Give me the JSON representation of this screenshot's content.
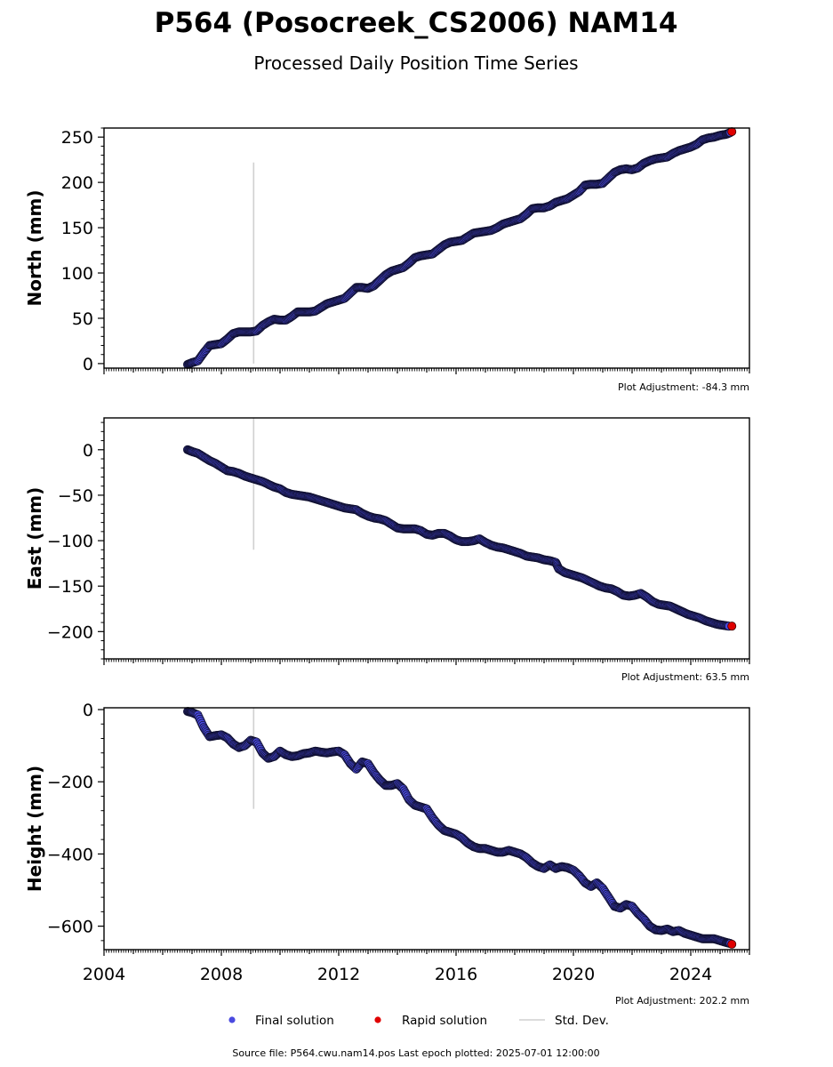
{
  "colors": {
    "final_fill": "#4a4ae0",
    "final_edge": "#101030",
    "rapid_fill": "#e00000",
    "stddev": "#d0d0d0",
    "axis": "#000000"
  },
  "footer": {
    "source": "Source file: P564.cwu.nam14.pos  Last epoch plotted: 2025-07-01 12:00:00"
  },
  "chart_data": {
    "type": "scatter",
    "title": "P564 (Posocreek_CS2006) NAM14",
    "subtitle": "Processed Daily Position Time Series",
    "xlim": [
      2004,
      2026
    ],
    "xticks": [
      2004,
      2008,
      2012,
      2016,
      2020,
      2024
    ],
    "legend": {
      "placement": "bottom-center",
      "entries": [
        "Final solution",
        "Rapid solution",
        "Std. Dev."
      ]
    },
    "panels": [
      {
        "ylabel": "North (mm)",
        "ylim": [
          -5,
          260
        ],
        "yticks": [
          0,
          50,
          100,
          150,
          200,
          250
        ],
        "adjustment": "Plot Adjustment: -84.3 mm",
        "stddev": {
          "x": 2009.1,
          "y": [
            0,
            222
          ]
        },
        "rapid": [
          [
            2025.4,
            256
          ]
        ],
        "final": [
          [
            2006.85,
            -1
          ],
          [
            2007.0,
            1
          ],
          [
            2007.2,
            3
          ],
          [
            2007.4,
            12
          ],
          [
            2007.6,
            20
          ],
          [
            2007.8,
            21
          ],
          [
            2008.0,
            22
          ],
          [
            2008.2,
            27
          ],
          [
            2008.4,
            33
          ],
          [
            2008.6,
            35
          ],
          [
            2008.8,
            35
          ],
          [
            2009.0,
            35
          ],
          [
            2009.2,
            36
          ],
          [
            2009.4,
            42
          ],
          [
            2009.6,
            46
          ],
          [
            2009.8,
            49
          ],
          [
            2010.0,
            48
          ],
          [
            2010.2,
            48
          ],
          [
            2010.4,
            52
          ],
          [
            2010.6,
            57
          ],
          [
            2010.8,
            57
          ],
          [
            2011.0,
            57
          ],
          [
            2011.2,
            58
          ],
          [
            2011.4,
            62
          ],
          [
            2011.6,
            66
          ],
          [
            2011.8,
            68
          ],
          [
            2012.0,
            70
          ],
          [
            2012.2,
            72
          ],
          [
            2012.4,
            78
          ],
          [
            2012.6,
            84
          ],
          [
            2012.8,
            84
          ],
          [
            2013.0,
            83
          ],
          [
            2013.2,
            86
          ],
          [
            2013.4,
            92
          ],
          [
            2013.6,
            98
          ],
          [
            2013.8,
            102
          ],
          [
            2014.0,
            104
          ],
          [
            2014.2,
            106
          ],
          [
            2014.4,
            111
          ],
          [
            2014.6,
            117
          ],
          [
            2014.8,
            119
          ],
          [
            2015.0,
            120
          ],
          [
            2015.2,
            121
          ],
          [
            2015.4,
            126
          ],
          [
            2015.6,
            131
          ],
          [
            2015.8,
            134
          ],
          [
            2016.0,
            135
          ],
          [
            2016.2,
            136
          ],
          [
            2016.4,
            140
          ],
          [
            2016.6,
            144
          ],
          [
            2016.8,
            145
          ],
          [
            2017.0,
            146
          ],
          [
            2017.2,
            147
          ],
          [
            2017.4,
            150
          ],
          [
            2017.6,
            154
          ],
          [
            2017.8,
            156
          ],
          [
            2018.0,
            158
          ],
          [
            2018.2,
            160
          ],
          [
            2018.4,
            165
          ],
          [
            2018.6,
            171
          ],
          [
            2018.8,
            172
          ],
          [
            2019.0,
            172
          ],
          [
            2019.2,
            174
          ],
          [
            2019.4,
            178
          ],
          [
            2019.6,
            180
          ],
          [
            2019.8,
            182
          ],
          [
            2020.0,
            186
          ],
          [
            2020.2,
            190
          ],
          [
            2020.4,
            197
          ],
          [
            2020.6,
            198
          ],
          [
            2020.8,
            198
          ],
          [
            2021.0,
            199
          ],
          [
            2021.2,
            205
          ],
          [
            2021.4,
            211
          ],
          [
            2021.6,
            214
          ],
          [
            2021.8,
            215
          ],
          [
            2022.0,
            214
          ],
          [
            2022.2,
            216
          ],
          [
            2022.4,
            221
          ],
          [
            2022.6,
            224
          ],
          [
            2022.8,
            226
          ],
          [
            2023.0,
            227
          ],
          [
            2023.2,
            228
          ],
          [
            2023.4,
            232
          ],
          [
            2023.6,
            235
          ],
          [
            2023.8,
            237
          ],
          [
            2024.0,
            239
          ],
          [
            2024.2,
            242
          ],
          [
            2024.4,
            247
          ],
          [
            2024.6,
            249
          ],
          [
            2024.8,
            250
          ],
          [
            2025.0,
            252
          ],
          [
            2025.2,
            253
          ],
          [
            2025.35,
            255
          ]
        ]
      },
      {
        "ylabel": "East (mm)",
        "ylim": [
          -230,
          35
        ],
        "yticks": [
          0,
          -50,
          -100,
          -150,
          -200
        ],
        "adjustment": "Plot Adjustment: 63.5 mm",
        "stddev": {
          "x": 2009.1,
          "y": [
            -110,
            35
          ]
        },
        "rapid": [
          [
            2025.4,
            -194
          ]
        ],
        "final": [
          [
            2006.85,
            0
          ],
          [
            2007.0,
            -2
          ],
          [
            2007.2,
            -4
          ],
          [
            2007.4,
            -8
          ],
          [
            2007.6,
            -12
          ],
          [
            2007.8,
            -15
          ],
          [
            2008.0,
            -19
          ],
          [
            2008.2,
            -23
          ],
          [
            2008.4,
            -24
          ],
          [
            2008.6,
            -26
          ],
          [
            2008.8,
            -29
          ],
          [
            2009.0,
            -31
          ],
          [
            2009.2,
            -33
          ],
          [
            2009.4,
            -35
          ],
          [
            2009.6,
            -38
          ],
          [
            2009.8,
            -41
          ],
          [
            2010.0,
            -43
          ],
          [
            2010.2,
            -47
          ],
          [
            2010.4,
            -49
          ],
          [
            2010.6,
            -50
          ],
          [
            2010.8,
            -51
          ],
          [
            2011.0,
            -52
          ],
          [
            2011.2,
            -54
          ],
          [
            2011.4,
            -56
          ],
          [
            2011.6,
            -58
          ],
          [
            2011.8,
            -60
          ],
          [
            2012.0,
            -62
          ],
          [
            2012.2,
            -64
          ],
          [
            2012.4,
            -65
          ],
          [
            2012.6,
            -66
          ],
          [
            2012.8,
            -70
          ],
          [
            2013.0,
            -73
          ],
          [
            2013.2,
            -75
          ],
          [
            2013.4,
            -76
          ],
          [
            2013.6,
            -78
          ],
          [
            2013.8,
            -82
          ],
          [
            2014.0,
            -86
          ],
          [
            2014.2,
            -87
          ],
          [
            2014.4,
            -87
          ],
          [
            2014.6,
            -87
          ],
          [
            2014.8,
            -89
          ],
          [
            2015.0,
            -93
          ],
          [
            2015.2,
            -94
          ],
          [
            2015.4,
            -92
          ],
          [
            2015.6,
            -92
          ],
          [
            2015.8,
            -95
          ],
          [
            2016.0,
            -99
          ],
          [
            2016.2,
            -101
          ],
          [
            2016.4,
            -101
          ],
          [
            2016.6,
            -100
          ],
          [
            2016.8,
            -98
          ],
          [
            2017.0,
            -102
          ],
          [
            2017.2,
            -105
          ],
          [
            2017.4,
            -107
          ],
          [
            2017.6,
            -108
          ],
          [
            2017.8,
            -110
          ],
          [
            2018.0,
            -112
          ],
          [
            2018.2,
            -114
          ],
          [
            2018.4,
            -117
          ],
          [
            2018.6,
            -118
          ],
          [
            2018.8,
            -119
          ],
          [
            2019.0,
            -121
          ],
          [
            2019.2,
            -122
          ],
          [
            2019.4,
            -124
          ],
          [
            2019.5,
            -131
          ],
          [
            2019.7,
            -135
          ],
          [
            2019.9,
            -137
          ],
          [
            2020.1,
            -139
          ],
          [
            2020.3,
            -141
          ],
          [
            2020.5,
            -144
          ],
          [
            2020.7,
            -147
          ],
          [
            2020.9,
            -150
          ],
          [
            2021.1,
            -152
          ],
          [
            2021.3,
            -153
          ],
          [
            2021.5,
            -156
          ],
          [
            2021.7,
            -160
          ],
          [
            2021.9,
            -161
          ],
          [
            2022.1,
            -160
          ],
          [
            2022.3,
            -158
          ],
          [
            2022.5,
            -162
          ],
          [
            2022.7,
            -167
          ],
          [
            2022.9,
            -170
          ],
          [
            2023.1,
            -171
          ],
          [
            2023.3,
            -172
          ],
          [
            2023.5,
            -175
          ],
          [
            2023.7,
            -178
          ],
          [
            2023.9,
            -181
          ],
          [
            2024.1,
            -183
          ],
          [
            2024.3,
            -185
          ],
          [
            2024.5,
            -188
          ],
          [
            2024.7,
            -190
          ],
          [
            2024.9,
            -192
          ],
          [
            2025.1,
            -193
          ],
          [
            2025.3,
            -194
          ]
        ]
      },
      {
        "ylabel": "Height (mm)",
        "ylim": [
          -665,
          5
        ],
        "yticks": [
          0,
          -200,
          -400,
          -600
        ],
        "adjustment": "Plot Adjustment: 202.2 mm",
        "stddev": {
          "x": 2009.1,
          "y": [
            -275,
            5
          ]
        },
        "rapid": [
          [
            2025.4,
            -650
          ]
        ],
        "final": [
          [
            2006.85,
            -5
          ],
          [
            2007.0,
            -8
          ],
          [
            2007.2,
            -15
          ],
          [
            2007.4,
            -50
          ],
          [
            2007.6,
            -75
          ],
          [
            2007.8,
            -72
          ],
          [
            2008.0,
            -70
          ],
          [
            2008.2,
            -78
          ],
          [
            2008.4,
            -95
          ],
          [
            2008.6,
            -105
          ],
          [
            2008.8,
            -100
          ],
          [
            2009.0,
            -85
          ],
          [
            2009.2,
            -90
          ],
          [
            2009.4,
            -120
          ],
          [
            2009.6,
            -135
          ],
          [
            2009.8,
            -130
          ],
          [
            2010.0,
            -115
          ],
          [
            2010.2,
            -125
          ],
          [
            2010.4,
            -130
          ],
          [
            2010.6,
            -128
          ],
          [
            2010.8,
            -122
          ],
          [
            2011.0,
            -120
          ],
          [
            2011.2,
            -115
          ],
          [
            2011.4,
            -118
          ],
          [
            2011.6,
            -120
          ],
          [
            2011.8,
            -117
          ],
          [
            2012.0,
            -115
          ],
          [
            2012.2,
            -125
          ],
          [
            2012.4,
            -150
          ],
          [
            2012.6,
            -165
          ],
          [
            2012.8,
            -145
          ],
          [
            2013.0,
            -150
          ],
          [
            2013.2,
            -175
          ],
          [
            2013.4,
            -195
          ],
          [
            2013.6,
            -210
          ],
          [
            2013.8,
            -210
          ],
          [
            2014.0,
            -205
          ],
          [
            2014.2,
            -220
          ],
          [
            2014.4,
            -250
          ],
          [
            2014.6,
            -265
          ],
          [
            2014.8,
            -270
          ],
          [
            2015.0,
            -275
          ],
          [
            2015.2,
            -300
          ],
          [
            2015.4,
            -320
          ],
          [
            2015.6,
            -335
          ],
          [
            2015.8,
            -340
          ],
          [
            2016.0,
            -345
          ],
          [
            2016.2,
            -355
          ],
          [
            2016.4,
            -370
          ],
          [
            2016.6,
            -380
          ],
          [
            2016.8,
            -385
          ],
          [
            2017.0,
            -385
          ],
          [
            2017.2,
            -390
          ],
          [
            2017.4,
            -395
          ],
          [
            2017.6,
            -395
          ],
          [
            2017.8,
            -390
          ],
          [
            2018.0,
            -395
          ],
          [
            2018.2,
            -400
          ],
          [
            2018.4,
            -410
          ],
          [
            2018.6,
            -425
          ],
          [
            2018.8,
            -435
          ],
          [
            2019.0,
            -440
          ],
          [
            2019.2,
            -430
          ],
          [
            2019.4,
            -440
          ],
          [
            2019.6,
            -435
          ],
          [
            2019.8,
            -438
          ],
          [
            2020.0,
            -445
          ],
          [
            2020.2,
            -460
          ],
          [
            2020.4,
            -480
          ],
          [
            2020.6,
            -490
          ],
          [
            2020.8,
            -480
          ],
          [
            2021.0,
            -495
          ],
          [
            2021.2,
            -520
          ],
          [
            2021.4,
            -545
          ],
          [
            2021.6,
            -550
          ],
          [
            2021.8,
            -540
          ],
          [
            2022.0,
            -545
          ],
          [
            2022.2,
            -565
          ],
          [
            2022.4,
            -580
          ],
          [
            2022.6,
            -600
          ],
          [
            2022.8,
            -610
          ],
          [
            2023.0,
            -612
          ],
          [
            2023.2,
            -608
          ],
          [
            2023.4,
            -615
          ],
          [
            2023.6,
            -612
          ],
          [
            2023.8,
            -620
          ],
          [
            2024.0,
            -625
          ],
          [
            2024.2,
            -630
          ],
          [
            2024.4,
            -635
          ],
          [
            2024.6,
            -635
          ],
          [
            2024.8,
            -635
          ],
          [
            2025.0,
            -640
          ],
          [
            2025.2,
            -645
          ],
          [
            2025.35,
            -648
          ]
        ]
      }
    ]
  }
}
